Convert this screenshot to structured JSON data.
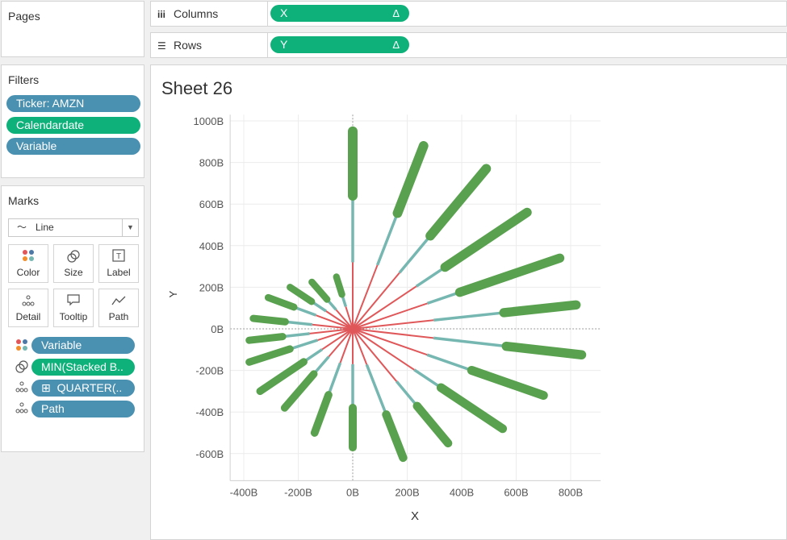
{
  "pages": {
    "title": "Pages"
  },
  "shelves": {
    "columns": {
      "label": "Columns",
      "icon": "columns-icon",
      "pill": "X",
      "delta": "Δ"
    },
    "rows": {
      "label": "Rows",
      "icon": "rows-icon",
      "pill": "Y",
      "delta": "Δ"
    }
  },
  "filters": {
    "title": "Filters",
    "items": [
      "Ticker: AMZN",
      "Calendardate",
      "Variable"
    ]
  },
  "marks": {
    "title": "Marks",
    "type": "Line",
    "buttons": [
      {
        "label": "Color",
        "icon": "color-icon"
      },
      {
        "label": "Size",
        "icon": "size-icon"
      },
      {
        "label": "Label",
        "icon": "label-icon"
      },
      {
        "label": "Detail",
        "icon": "detail-icon"
      },
      {
        "label": "Tooltip",
        "icon": "tooltip-icon"
      },
      {
        "label": "Path",
        "icon": "path-icon"
      }
    ],
    "fields": [
      {
        "label": "Variable",
        "icon": "color-icon"
      },
      {
        "label": "MIN(Stacked B..",
        "icon": "size-icon"
      },
      {
        "label": "QUARTER(..",
        "icon": "detail-icon",
        "prefix": "⊞"
      },
      {
        "label": "Path",
        "icon": "detail-icon"
      }
    ]
  },
  "sheet": {
    "title": "Sheet 26"
  },
  "colors": {
    "red": "#e05759",
    "teal": "#76b7b2",
    "green": "#59a14f",
    "blue_pill": "#4a90b0",
    "green_pill": "#0fb17b"
  },
  "chart_data": {
    "type": "line",
    "title": "Sheet 26",
    "xlabel": "X",
    "ylabel": "Y",
    "units": "B",
    "xlim": [
      -450,
      910
    ],
    "ylim": [
      -730,
      1030
    ],
    "xticks": [
      -400,
      -200,
      0,
      200,
      400,
      600,
      800
    ],
    "yticks": [
      -600,
      -400,
      -200,
      0,
      200,
      400,
      600,
      800,
      1000
    ],
    "x_tick_labels": [
      "-400B",
      "-200B",
      "0B",
      "200B",
      "400B",
      "600B",
      "800B"
    ],
    "y_tick_labels": [
      "-600B",
      "-400B",
      "-200B",
      "0B",
      "200B",
      "400B",
      "600B",
      "800B",
      "1000B"
    ],
    "series_colors": [
      "#e05759",
      "#76b7b2",
      "#59a14f"
    ],
    "rays": [
      {
        "end": [
          0,
          950
        ],
        "splits": [
          320,
          640
        ]
      },
      {
        "end": [
          260,
          880
        ],
        "splits": [
          320,
          580
        ]
      },
      {
        "end": [
          490,
          770
        ],
        "splits": [
          320,
          530
        ]
      },
      {
        "end": [
          640,
          560
        ],
        "splits": [
          310,
          450
        ]
      },
      {
        "end": [
          760,
          340
        ],
        "splits": [
          300,
          430
        ]
      },
      {
        "end": [
          820,
          115
        ],
        "splits": [
          300,
          560
        ]
      },
      {
        "end": [
          840,
          -125
        ],
        "splits": [
          300,
          570
        ]
      },
      {
        "end": [
          700,
          -320
        ],
        "splits": [
          300,
          480
        ]
      },
      {
        "end": [
          550,
          -480
        ],
        "splits": [
          300,
          430
        ]
      },
      {
        "end": [
          350,
          -550
        ],
        "splits": [
          300,
          440
        ]
      },
      {
        "end": [
          185,
          -620
        ],
        "splits": [
          180,
          430
        ]
      },
      {
        "end": [
          0,
          -570
        ],
        "splits": [
          170,
          380
        ]
      },
      {
        "end": [
          -140,
          -500
        ],
        "splits": [
          170,
          330
        ]
      },
      {
        "end": [
          -250,
          -380
        ],
        "splits": [
          160,
          260
        ]
      },
      {
        "end": [
          -340,
          -300
        ],
        "splits": [
          150,
          240
        ]
      },
      {
        "end": [
          -380,
          -160
        ],
        "splits": [
          140,
          250
        ]
      },
      {
        "end": [
          -380,
          -55
        ],
        "splits": [
          160,
          260
        ]
      },
      {
        "end": [
          -365,
          50
        ],
        "splits": [
          150,
          250
        ]
      },
      {
        "end": [
          -310,
          150
        ],
        "splits": [
          150,
          240
        ]
      },
      {
        "end": [
          -230,
          200
        ],
        "splits": [
          130,
          200
        ]
      },
      {
        "end": [
          -150,
          225
        ],
        "splits": [
          110,
          170
        ]
      },
      {
        "end": [
          -60,
          250
        ],
        "splits": [
          110,
          170
        ]
      }
    ]
  }
}
